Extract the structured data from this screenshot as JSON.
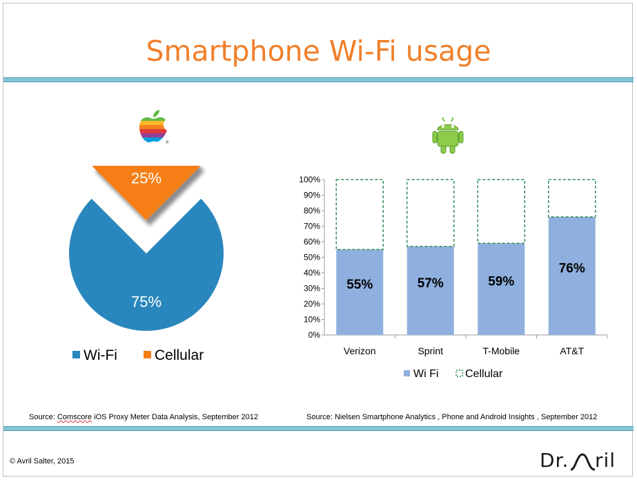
{
  "slide": {
    "title": "Smartphone Wi-Fi usage",
    "source_left_prefix": "Source: ",
    "source_left_brand": "Comscore",
    "source_left_rest": " iOS Proxy Meter Data Analysis, September 2012",
    "source_right": "Source: Nielsen Smartphone Analytics , Phone and Android Insights , September 2012",
    "copyright": "© Avril Salter, 2015",
    "logo_left": "Dr.",
    "logo_right": "ril"
  },
  "icons": {
    "ios": "apple-icon",
    "android": "android-icon"
  },
  "colors": {
    "title": "#f07f2a",
    "wifi_pie": "#2a87bd",
    "cellular_pie": "#f57f17",
    "wifi_bar": "#8fb0de",
    "cellular_border": "#2e8b57",
    "band": "#85c6d8"
  },
  "chart_data": [
    {
      "type": "pie",
      "slices": [
        {
          "name": "Wi-Fi",
          "value": 75,
          "label": "75%",
          "color": "#2a87bd"
        },
        {
          "name": "Cellular",
          "value": 25,
          "label": "25%",
          "color": "#f57f17",
          "exploded": true
        }
      ],
      "legend": [
        "Wi-Fi",
        "Cellular"
      ],
      "legend_position": "bottom"
    },
    {
      "type": "bar",
      "stacked": true,
      "categories": [
        "Verizon",
        "Sprint",
        "T-Mobile",
        "AT&T"
      ],
      "series": [
        {
          "name": "Wi Fi",
          "values": [
            55,
            57,
            59,
            76
          ],
          "labels": [
            "55%",
            "57%",
            "59%",
            "76%"
          ],
          "color": "#8fb0de"
        },
        {
          "name": "Cellular",
          "values": [
            45,
            43,
            41,
            24
          ],
          "style": "dashed-outline",
          "color": "#2e8b57"
        }
      ],
      "ylim": [
        0,
        100
      ],
      "yticks": [
        "0%",
        "10%",
        "20%",
        "30%",
        "40%",
        "50%",
        "60%",
        "70%",
        "80%",
        "90%",
        "100%"
      ],
      "legend_position": "bottom",
      "grid": false
    }
  ]
}
